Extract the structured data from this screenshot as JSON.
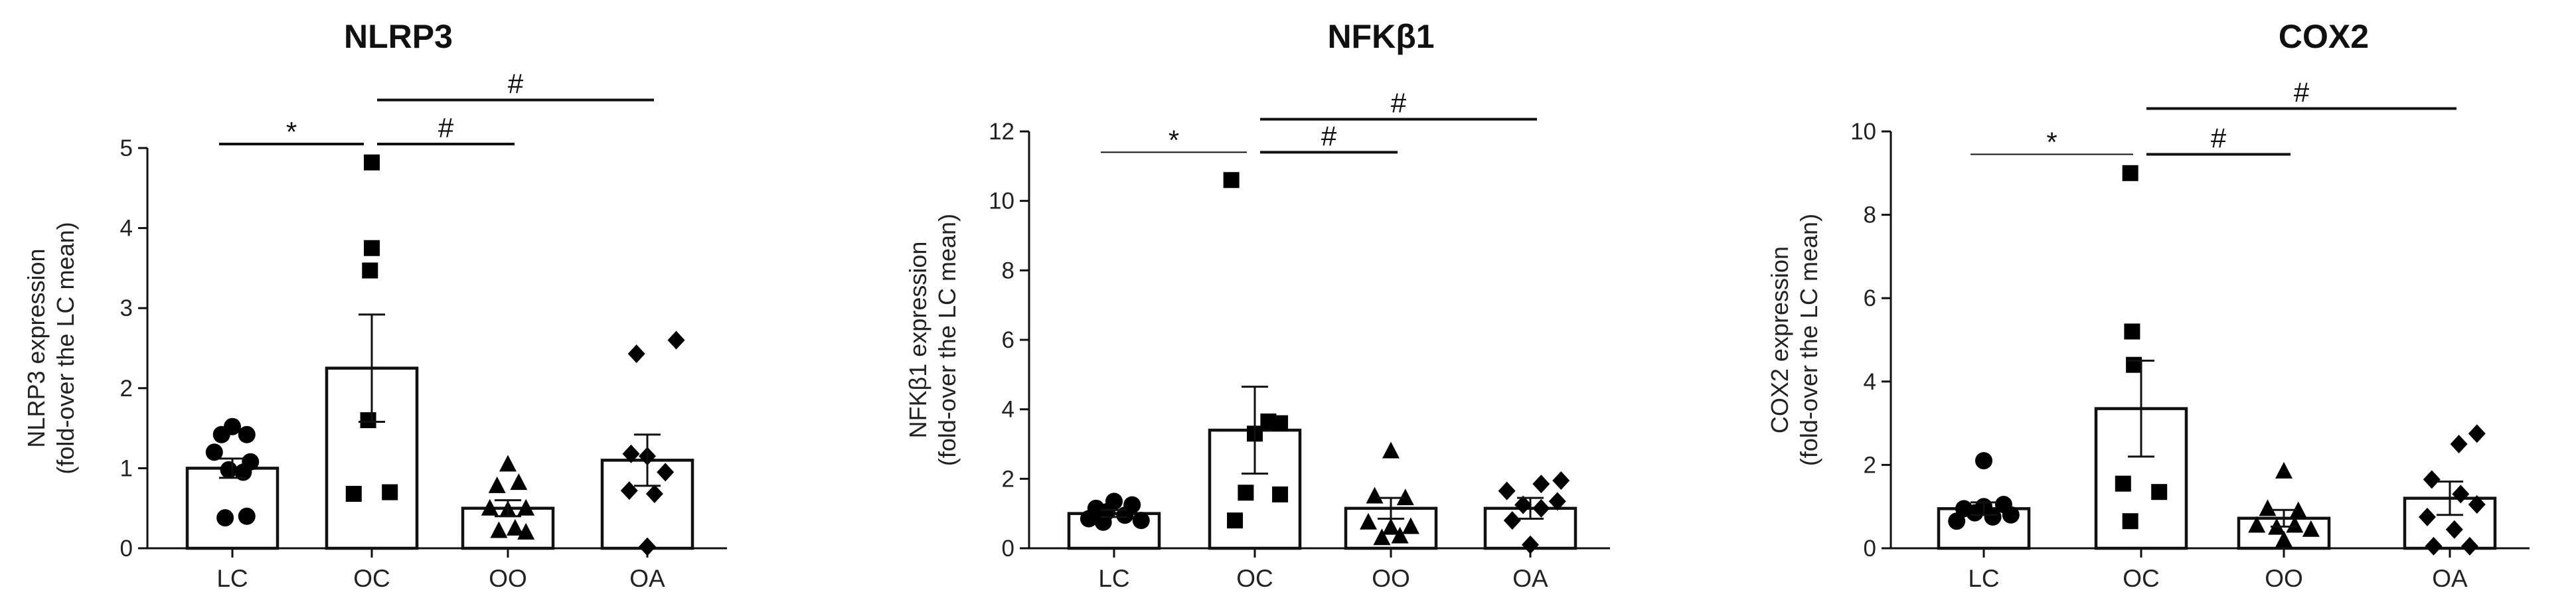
{
  "chart_data": [
    {
      "type": "bar",
      "title": "NLRP3",
      "ylabel_line1": "NLRP3 expression",
      "ylabel_line2": "(fold-over the LC mean)",
      "categories": [
        "LC",
        "OC",
        "OO",
        "OA"
      ],
      "ylim": [
        0,
        5
      ],
      "yticks": [
        0,
        1,
        2,
        3,
        4,
        5
      ],
      "ytick_labels": [
        "0",
        "1",
        "2",
        "3",
        "4",
        "5"
      ],
      "bars": [
        {
          "category": "LC",
          "mean": 1.0,
          "sem": 0.12,
          "marker": "circle",
          "points": [
            [
              -0.12,
              1.42
            ],
            [
              0.0,
              1.52
            ],
            [
              0.16,
              1.42
            ],
            [
              -0.2,
              1.2
            ],
            [
              0.2,
              1.08
            ],
            [
              -0.04,
              0.98
            ],
            [
              0.12,
              0.95
            ],
            [
              -0.08,
              0.38
            ],
            [
              0.16,
              0.4
            ]
          ]
        },
        {
          "category": "OC",
          "mean": 2.25,
          "sem": 0.67,
          "marker": "square",
          "points": [
            [
              0.0,
              4.82
            ],
            [
              0.0,
              3.75
            ],
            [
              -0.02,
              3.47
            ],
            [
              -0.04,
              1.6
            ],
            [
              -0.2,
              0.68
            ],
            [
              0.2,
              0.7
            ]
          ]
        },
        {
          "category": "OO",
          "mean": 0.5,
          "sem": 0.1,
          "marker": "triangle",
          "points": [
            [
              0.0,
              1.05
            ],
            [
              -0.12,
              0.78
            ],
            [
              0.12,
              0.82
            ],
            [
              -0.2,
              0.5
            ],
            [
              0.0,
              0.48
            ],
            [
              0.2,
              0.5
            ],
            [
              -0.1,
              0.22
            ],
            [
              0.08,
              0.25
            ],
            [
              0.2,
              0.2
            ]
          ]
        },
        {
          "category": "OA",
          "mean": 1.1,
          "sem": 0.32,
          "marker": "diamond",
          "points": [
            [
              -0.12,
              2.43
            ],
            [
              0.32,
              2.6
            ],
            [
              -0.18,
              1.18
            ],
            [
              0.0,
              1.15
            ],
            [
              0.2,
              0.95
            ],
            [
              -0.2,
              0.72
            ],
            [
              0.08,
              0.68
            ],
            [
              0.0,
              0.02
            ]
          ]
        }
      ],
      "significance": [
        {
          "symbol": "*",
          "from": "LC",
          "to": "OC",
          "y": 5.05
        },
        {
          "symbol": "#",
          "from": "OC",
          "to": "OO",
          "y": 5.05
        },
        {
          "symbol": "#",
          "from": "OC",
          "to": "OA",
          "y": 5.6
        }
      ]
    },
    {
      "type": "bar",
      "title": "NFKβ1",
      "ylabel_line1": "NFKβ1 expression",
      "ylabel_line2": "(fold-over the LC mean)",
      "categories": [
        "LC",
        "OC",
        "OO",
        "OA"
      ],
      "ylim": [
        0,
        12
      ],
      "yticks": [
        0,
        2,
        4,
        6,
        8,
        10,
        12
      ],
      "ytick_labels": [
        "0",
        "2",
        "4",
        "6",
        "8",
        "10",
        "12"
      ],
      "bars": [
        {
          "category": "LC",
          "mean": 1.0,
          "sem": 0.1,
          "marker": "circle",
          "points": [
            [
              -0.2,
              1.15
            ],
            [
              0.0,
              1.35
            ],
            [
              0.2,
              1.25
            ],
            [
              -0.28,
              0.85
            ],
            [
              -0.08,
              1.05
            ],
            [
              0.12,
              0.95
            ],
            [
              0.3,
              0.8
            ],
            [
              -0.12,
              0.75
            ]
          ]
        },
        {
          "category": "OC",
          "mean": 3.4,
          "sem": 1.25,
          "marker": "square",
          "points": [
            [
              -0.26,
              10.6
            ],
            [
              0.15,
              3.65
            ],
            [
              0.28,
              3.6
            ],
            [
              0.0,
              3.3
            ],
            [
              -0.1,
              1.6
            ],
            [
              0.28,
              1.55
            ],
            [
              -0.22,
              0.8
            ]
          ]
        },
        {
          "category": "OO",
          "mean": 1.15,
          "sem": 0.3,
          "marker": "triangle",
          "points": [
            [
              0.0,
              2.8
            ],
            [
              -0.18,
              1.5
            ],
            [
              0.16,
              1.45
            ],
            [
              -0.25,
              0.75
            ],
            [
              0.0,
              0.6
            ],
            [
              0.22,
              0.62
            ],
            [
              -0.1,
              0.3
            ],
            [
              0.1,
              0.35
            ]
          ]
        },
        {
          "category": "OA",
          "mean": 1.15,
          "sem": 0.3,
          "marker": "diamond",
          "points": [
            [
              -0.26,
              1.65
            ],
            [
              0.12,
              1.85
            ],
            [
              0.34,
              1.95
            ],
            [
              -0.08,
              1.25
            ],
            [
              0.12,
              1.15
            ],
            [
              0.3,
              1.35
            ],
            [
              -0.2,
              0.8
            ],
            [
              0.0,
              0.1
            ]
          ]
        }
      ],
      "significance": [
        {
          "symbol": "*",
          "from": "LC",
          "to": "OC",
          "y": 11.4
        },
        {
          "symbol": "#",
          "from": "OC",
          "to": "OO",
          "y": 11.4
        },
        {
          "symbol": "#",
          "from": "OC",
          "to": "OA",
          "y": 12.35
        }
      ]
    },
    {
      "type": "bar",
      "title": "COX2",
      "ylabel_line1": "COX2 expression",
      "ylabel_line2": "(fold-over the LC mean)",
      "categories": [
        "LC",
        "OC",
        "OO",
        "OA"
      ],
      "ylim": [
        0,
        10
      ],
      "yticks": [
        0,
        2,
        4,
        6,
        8,
        10
      ],
      "ytick_labels": [
        "0",
        "2",
        "4",
        "6",
        "8",
        "10"
      ],
      "bars": [
        {
          "category": "LC",
          "mean": 0.95,
          "sem": 0.15,
          "marker": "circle",
          "points": [
            [
              0.0,
              2.1
            ],
            [
              -0.22,
              0.95
            ],
            [
              0.0,
              1.0
            ],
            [
              0.22,
              1.05
            ],
            [
              -0.3,
              0.65
            ],
            [
              -0.1,
              0.85
            ],
            [
              0.1,
              0.75
            ],
            [
              0.3,
              0.8
            ]
          ]
        },
        {
          "category": "OC",
          "mean": 3.35,
          "sem": 1.15,
          "marker": "square",
          "points": [
            [
              -0.12,
              9.0
            ],
            [
              -0.1,
              5.2
            ],
            [
              -0.08,
              4.4
            ],
            [
              -0.2,
              1.55
            ],
            [
              0.2,
              1.35
            ],
            [
              -0.12,
              0.65
            ]
          ]
        },
        {
          "category": "OO",
          "mean": 0.72,
          "sem": 0.2,
          "marker": "triangle",
          "points": [
            [
              0.0,
              1.85
            ],
            [
              -0.18,
              0.95
            ],
            [
              0.16,
              0.9
            ],
            [
              -0.3,
              0.55
            ],
            [
              -0.08,
              0.5
            ],
            [
              0.12,
              0.55
            ],
            [
              0.3,
              0.45
            ],
            [
              0.0,
              0.2
            ]
          ]
        },
        {
          "category": "OA",
          "mean": 1.2,
          "sem": 0.4,
          "marker": "diamond",
          "points": [
            [
              0.1,
              2.5
            ],
            [
              0.3,
              2.75
            ],
            [
              -0.2,
              1.65
            ],
            [
              0.12,
              1.3
            ],
            [
              0.3,
              1.05
            ],
            [
              -0.25,
              0.75
            ],
            [
              0.05,
              0.45
            ],
            [
              -0.18,
              0.05
            ],
            [
              0.22,
              0.05
            ]
          ]
        }
      ],
      "significance": [
        {
          "symbol": "*",
          "from": "LC",
          "to": "OC",
          "y": 9.45
        },
        {
          "symbol": "#",
          "from": "OC",
          "to": "OO",
          "y": 9.45
        },
        {
          "symbol": "#",
          "from": "OC",
          "to": "OA",
          "y": 10.55
        }
      ]
    }
  ]
}
